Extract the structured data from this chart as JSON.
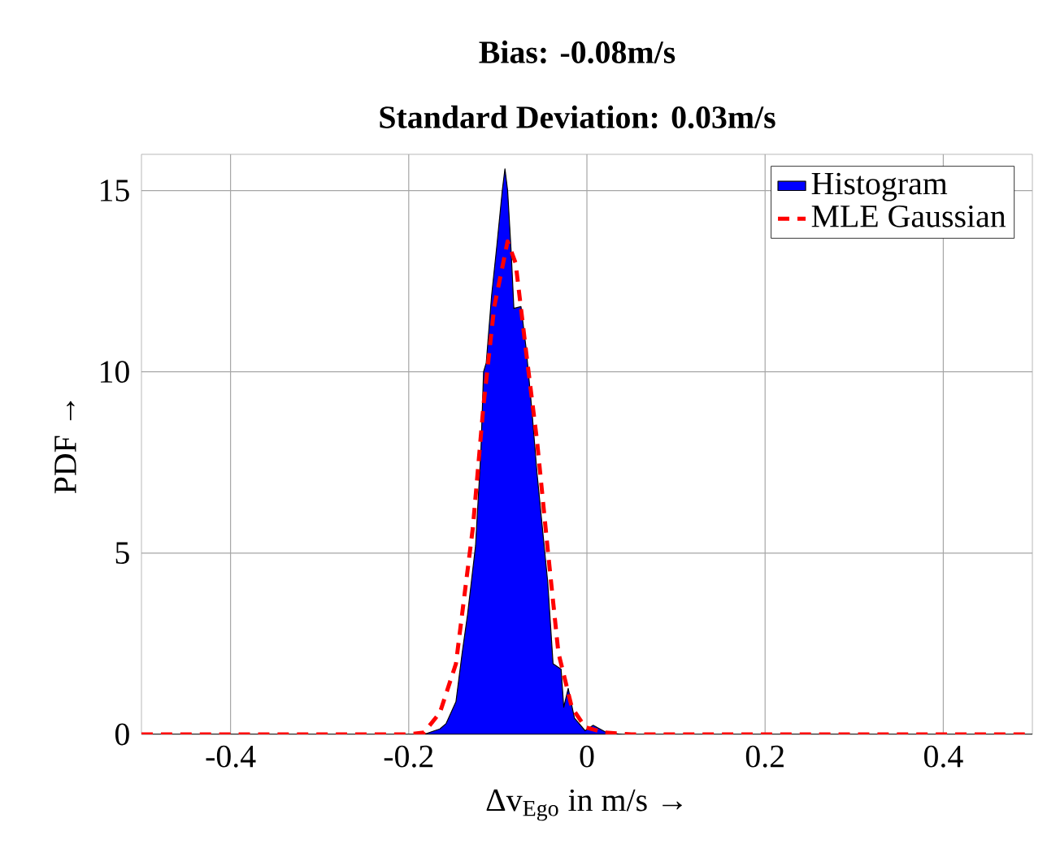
{
  "chart_data": {
    "type": "area",
    "title": "Bias: -0.08m/s",
    "subtitle": "Standard Deviation: 0.03m/s",
    "xlabel": "Δv$_{Ego}$ in m/s  →",
    "ylabel": "PDF  →",
    "xlim": [
      -0.5,
      0.5
    ],
    "ylim": [
      0,
      16
    ],
    "xticks": [
      -0.4,
      -0.2,
      0,
      0.2,
      0.4
    ],
    "yticks": [
      0,
      5,
      10,
      15
    ],
    "grid": true,
    "legend": "top right",
    "marker": "none",
    "series": [
      {
        "name": "Histogram",
        "color": "#0000ff",
        "x": [
          -0.5,
          -0.2,
          -0.183,
          -0.165,
          -0.158,
          -0.147,
          -0.14,
          -0.134,
          -0.125,
          -0.119,
          -0.116,
          -0.113,
          -0.107,
          -0.101,
          -0.095,
          -0.092,
          -0.089,
          -0.085,
          -0.082,
          -0.074,
          -0.068,
          -0.062,
          -0.056,
          -0.05,
          -0.044,
          -0.038,
          -0.029,
          -0.026,
          -0.021,
          -0.014,
          -0.002,
          0.007,
          0.022,
          0.04,
          0.5
        ],
        "values": [
          0,
          0,
          0,
          0.15,
          0.3,
          0.9,
          2.25,
          3.3,
          5.2,
          7.8,
          10.0,
          10.25,
          12.1,
          13.5,
          15.0,
          15.6,
          15.0,
          13.3,
          11.75,
          11.8,
          10.6,
          9.0,
          7.2,
          5.7,
          4.2,
          1.95,
          1.8,
          0.75,
          1.27,
          0.45,
          0.1,
          0.25,
          0.05,
          0,
          0
        ]
      },
      {
        "name": "MLE Gaussian",
        "type": "line",
        "color": "#ff0000",
        "line_style": "dashed",
        "x": [
          -0.5,
          -0.2,
          -0.183,
          -0.165,
          -0.147,
          -0.128,
          -0.116,
          -0.104,
          -0.089,
          -0.08,
          -0.068,
          -0.056,
          -0.044,
          -0.032,
          -0.017,
          -0.002,
          0.02,
          0.05,
          0.5
        ],
        "values": [
          0,
          0,
          0.05,
          0.6,
          1.95,
          5.7,
          9.1,
          11.8,
          13.6,
          13.0,
          10.5,
          8.1,
          5.1,
          2.25,
          0.75,
          0.2,
          0.05,
          0,
          0
        ]
      }
    ]
  }
}
